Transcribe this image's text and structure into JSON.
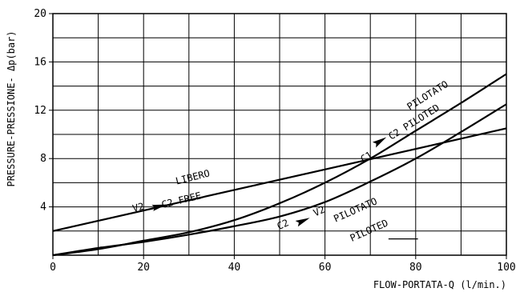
{
  "chart_data": {
    "type": "line",
    "xlabel": "FLOW-PORTATA-Q (l/min.)",
    "ylabel": "PRESSURE-PRESSIONE- Δp(bar)",
    "xlim": [
      0,
      100
    ],
    "ylim": [
      0,
      20
    ],
    "x_ticks": [
      0,
      20,
      40,
      60,
      80,
      100
    ],
    "y_ticks": [
      4,
      8,
      12,
      16,
      20
    ],
    "x_tick_labels": [
      "0",
      "20",
      "40",
      "60",
      "80",
      "100"
    ],
    "y_tick_labels": [
      "4",
      "8",
      "12",
      "16",
      "20"
    ],
    "grid": true,
    "legend": "none",
    "series": [
      {
        "x": [
          0,
          10,
          20,
          30,
          40,
          50,
          60,
          70,
          80,
          90,
          100
        ],
        "y": [
          0,
          0.5,
          1.2,
          1.9,
          2.9,
          4.3,
          6.0,
          8.0,
          10.3,
          12.6,
          15.0
        ]
      },
      {
        "x": [
          0,
          10,
          20,
          30,
          40,
          50,
          60,
          70,
          80,
          90,
          100
        ],
        "y": [
          0,
          0.6,
          1.1,
          1.7,
          2.4,
          3.2,
          4.4,
          6.1,
          8.0,
          10.2,
          12.5
        ]
      },
      {
        "x": [
          0,
          100
        ],
        "y": [
          2.0,
          10.5
        ]
      }
    ],
    "annotations": [
      {
        "text": "PILOTATO",
        "x": 83,
        "y": 13.0
      },
      {
        "text": "C1",
        "x": 69.5,
        "y": 7.9
      },
      {
        "text": "C2 PILOTED",
        "x": 80,
        "y": 10.8
      },
      {
        "text": "LIBERO",
        "x": 31,
        "y": 6.2
      },
      {
        "text": "V2",
        "x": 19,
        "y": 3.7
      },
      {
        "text": "C2 FREE",
        "x": 28.5,
        "y": 4.3
      },
      {
        "text": "C2",
        "x": 51,
        "y": 2.3
      },
      {
        "text": "V2",
        "x": 59,
        "y": 3.4
      },
      {
        "text": "PILOTATO",
        "x": 67,
        "y": 3.5
      },
      {
        "text": "PILOTED",
        "x": 70,
        "y": 1.8
      }
    ]
  }
}
